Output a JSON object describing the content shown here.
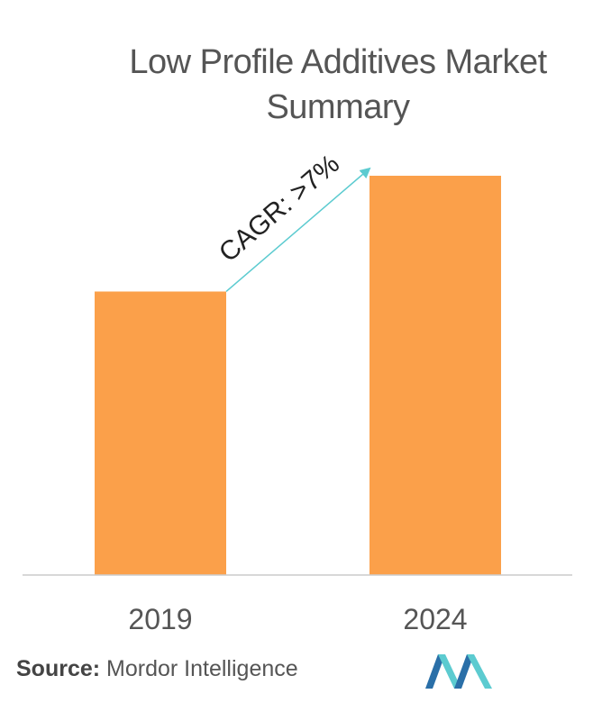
{
  "title_lines": [
    "Low Profile Additives Market",
    "Summary"
  ],
  "chart_data": {
    "type": "bar",
    "title": "Low Profile Additives Market Summary",
    "categories": [
      "2019",
      "2024"
    ],
    "values": [
      0.71,
      1.0
    ],
    "ylim": [
      0,
      1.0
    ],
    "annotation": "CAGR: >7%",
    "bar_color": "#fba04a",
    "arrow_color": "#5ccbd0",
    "grid": false,
    "legend": "none"
  },
  "source": {
    "label": "Source:",
    "text": "Mordor Intelligence"
  },
  "logo": {
    "icon": "mordor-intelligence-logo",
    "colors": [
      "#2a6fa8",
      "#5ccbd0"
    ]
  }
}
